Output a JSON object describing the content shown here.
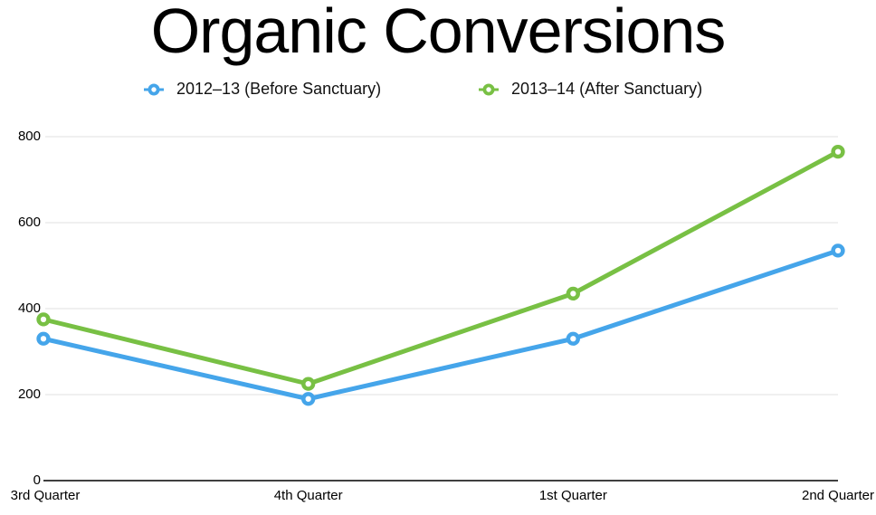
{
  "chart_data": {
    "type": "line",
    "title": "Organic Conversions",
    "categories": [
      "3rd Quarter",
      "4th Quarter",
      "1st Quarter",
      "2nd Quarter"
    ],
    "series": [
      {
        "name": "2012–13 (Before Sanctuary)",
        "color": "#45a5ea",
        "values": [
          330,
          190,
          330,
          535
        ]
      },
      {
        "name": "2013–14 (After Sanctuary)",
        "color": "#78c044",
        "values": [
          375,
          225,
          435,
          765
        ]
      }
    ],
    "y_ticks": [
      0,
      200,
      400,
      600,
      800
    ],
    "ylim": [
      0,
      800
    ],
    "grid": true,
    "legend_position": "top",
    "marker_style": "open-circle",
    "colors": {
      "gridline": "#e7e7e7",
      "axis_line": "#000000",
      "text": "#000000",
      "background": "#ffffff"
    }
  }
}
